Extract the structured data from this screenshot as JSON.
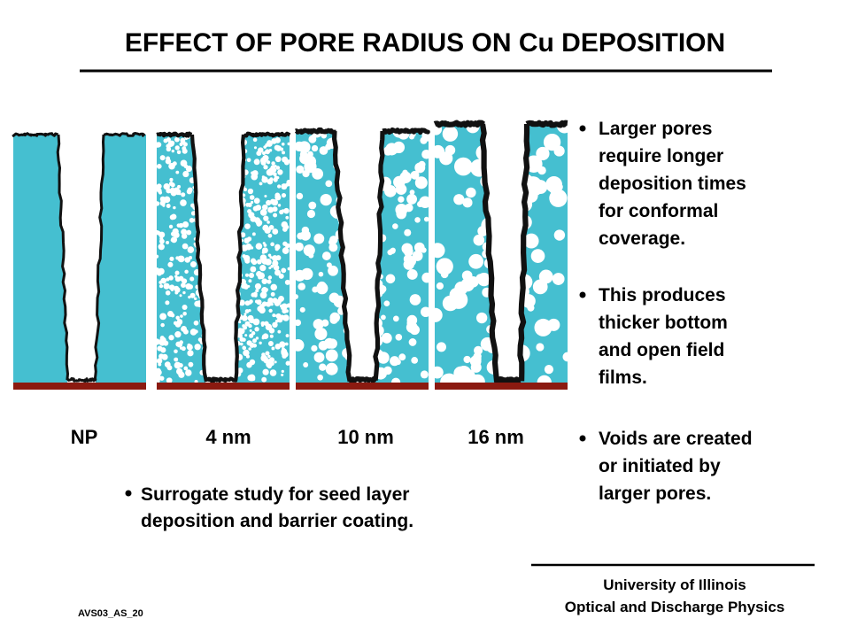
{
  "title": "EFFECT OF PORE RADIUS ON Cu DEPOSITION",
  "figure": {
    "panels": [
      {
        "label": "NP"
      },
      {
        "label": "4 nm"
      },
      {
        "label": "10 nm"
      },
      {
        "label": "16 nm"
      }
    ]
  },
  "bullets_right": [
    {
      "lines": [
        "Larger pores",
        "require longer",
        "deposition times",
        "for conformal",
        "coverage."
      ]
    },
    {
      "lines": [
        "This produces",
        "thicker bottom",
        "and open field",
        "films."
      ]
    },
    {
      "lines": [
        "Voids are created",
        "or initiated by",
        "larger pores."
      ]
    }
  ],
  "bullet_bottom": {
    "lines": [
      "Surrogate study for seed layer",
      "deposition and barrier coating."
    ]
  },
  "footer": {
    "affiliation": [
      "University of Illinois",
      "Optical and Discharge Physics"
    ],
    "slide_id": "AVS03_AS_20"
  }
}
